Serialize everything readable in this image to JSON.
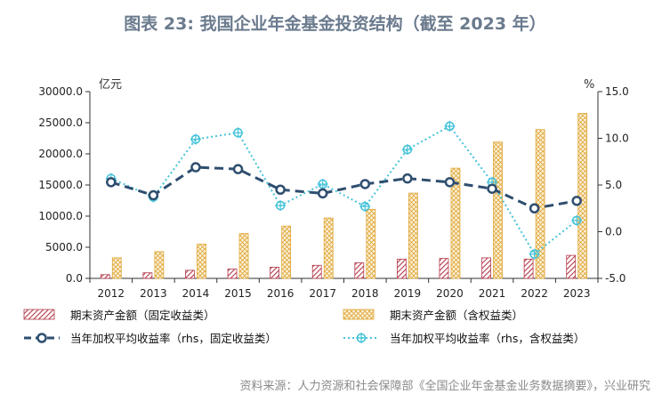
{
  "header": {
    "title": "图表 23: 我国企业年金基金投资结构（截至 2023 年）"
  },
  "footer": {
    "source": "资料来源：人力资源和社会保障部《全国企业年金基金业务数据摘要》，兴业研究"
  },
  "colors": {
    "bar_fixed": "#b33a4a",
    "bar_equity": "#e0a83a",
    "line_fixed": "#2f4e6f",
    "line_equity": "#46c3d9"
  },
  "chart_data": {
    "type": "bar",
    "categories": [
      "2012",
      "2013",
      "2014",
      "2015",
      "2016",
      "2017",
      "2018",
      "2019",
      "2020",
      "2021",
      "2022",
      "2023"
    ],
    "left_axis": {
      "unit": "亿元",
      "ylim": [
        0,
        30000
      ],
      "ticks": [
        "0.0",
        "5000.0",
        "10000.0",
        "15000.0",
        "20000.0",
        "25000.0",
        "30000.0"
      ]
    },
    "right_axis": {
      "unit": "%",
      "ylim": [
        -5,
        15
      ],
      "ticks": [
        "-5.0",
        "0.0",
        "5.0",
        "10.0",
        "15.0"
      ]
    },
    "legend_placement": "bottom",
    "grid": false,
    "series": [
      {
        "name": "期末资产金额（固定收益类）",
        "kind": "bar",
        "axis": "left",
        "values": [
          600,
          900,
          1300,
          1500,
          1800,
          2100,
          2500,
          3100,
          3200,
          3300,
          3100,
          3700
        ]
      },
      {
        "name": "期末资产金额（含权益类）",
        "kind": "bar",
        "axis": "left",
        "values": [
          3300,
          4300,
          5500,
          7200,
          8400,
          9700,
          11100,
          13700,
          17700,
          21900,
          23900,
          26500
        ]
      },
      {
        "name": "当年加权平均收益率（rhs，固定收益类）",
        "kind": "line",
        "axis": "right",
        "values": [
          5.3,
          3.9,
          6.9,
          6.7,
          4.5,
          4.1,
          5.1,
          5.7,
          5.3,
          4.6,
          2.5,
          3.3
        ]
      },
      {
        "name": "当年加权平均收益率（rhs，含权益类）",
        "kind": "line",
        "axis": "right",
        "values": [
          5.7,
          3.7,
          9.9,
          10.6,
          2.8,
          5.1,
          2.7,
          8.8,
          11.3,
          5.3,
          -2.4,
          1.2
        ]
      }
    ]
  }
}
